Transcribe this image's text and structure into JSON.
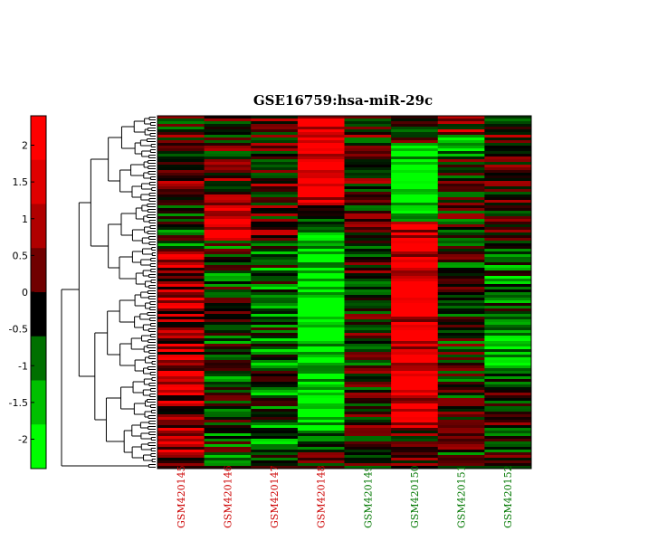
{
  "chart_data": {
    "type": "heatmap",
    "title": "GSE16759:hsa-miR-29c",
    "samples": [
      {
        "label": "GSM420145",
        "color": "#cc0000"
      },
      {
        "label": "GSM420146",
        "color": "#cc0000"
      },
      {
        "label": "GSM420147",
        "color": "#cc0000"
      },
      {
        "label": "GSM420148",
        "color": "#cc0000"
      },
      {
        "label": "GSM420149",
        "color": "#007700"
      },
      {
        "label": "GSM420150",
        "color": "#007700"
      },
      {
        "label": "GSM420151",
        "color": "#007700"
      },
      {
        "label": "GSM420152",
        "color": "#007700"
      }
    ],
    "colorbar": {
      "ticks": [
        2,
        1.5,
        1,
        0.5,
        0,
        -0.5,
        -1,
        -1.5,
        -2
      ],
      "range": [
        -2.4,
        2.4
      ],
      "colors_top_to_bottom": [
        "#ff0000",
        "#e00000",
        "#b00000",
        "#700000",
        "#000000",
        "#007000",
        "#00c000",
        "#00ff00"
      ]
    },
    "rows": 130,
    "high_color": "#ff0000",
    "low_color": "#00ff00",
    "mid_color": "#000000",
    "legend": "left",
    "dendrogram": "left"
  }
}
